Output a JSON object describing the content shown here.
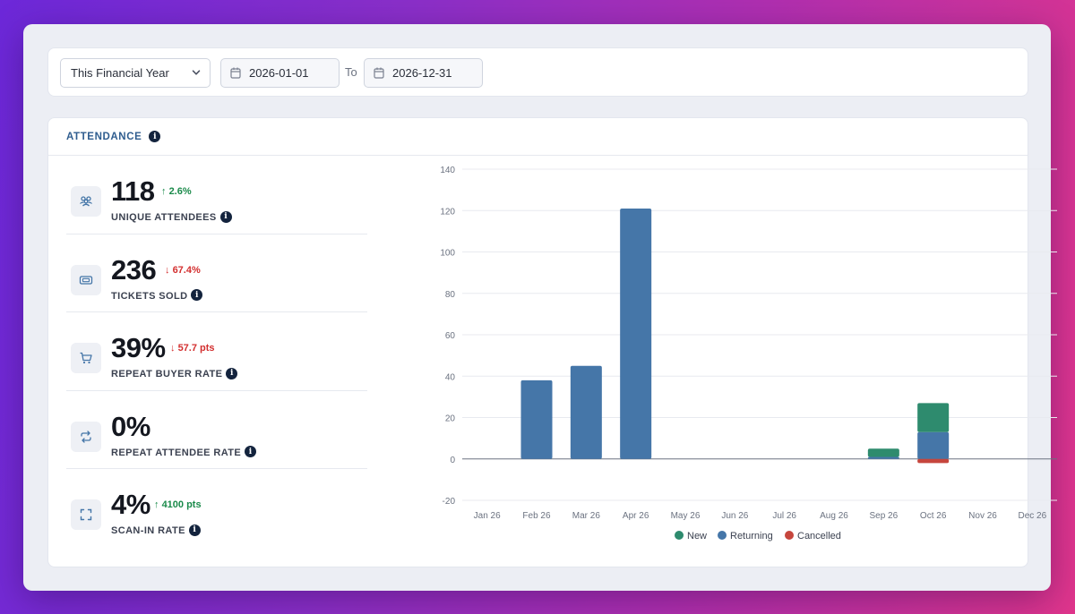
{
  "filter": {
    "range_label": "This Financial Year",
    "start_date": "2026-01-01",
    "to_label": "To",
    "end_date": "2026-12-31"
  },
  "attendance": {
    "title": "ATTENDANCE",
    "metrics": [
      {
        "value": "118",
        "change": "2.6%",
        "direction": "up",
        "label": "UNIQUE ATTENDEES",
        "icon": "users-icon"
      },
      {
        "value": "236",
        "change": "67.4%",
        "direction": "down",
        "label": "TICKETS SOLD",
        "icon": "ticket-icon"
      },
      {
        "value": "39%",
        "change": "57.7 pts",
        "direction": "down",
        "label": "REPEAT BUYER RATE",
        "icon": "cart-icon"
      },
      {
        "value": "0%",
        "change": "",
        "direction": "none",
        "label": "REPEAT ATTENDEE RATE",
        "icon": "repeat-icon"
      },
      {
        "value": "4%",
        "change": "4100 pts",
        "direction": "up",
        "label": "SCAN-IN RATE",
        "icon": "scan-icon"
      }
    ]
  },
  "chart_data": {
    "type": "bar",
    "stacked": true,
    "categories": [
      "Jan 26",
      "Feb 26",
      "Mar 26",
      "Apr 26",
      "May 26",
      "Jun 26",
      "Jul 26",
      "Aug 26",
      "Sep 26",
      "Oct 26",
      "Nov 26",
      "Dec 26"
    ],
    "series": [
      {
        "name": "New",
        "color": "#2e8b6e",
        "values": [
          0,
          0,
          0,
          0,
          0,
          0,
          0,
          0,
          4,
          14,
          0,
          0
        ]
      },
      {
        "name": "Returning",
        "color": "#4576a8",
        "values": [
          0,
          38,
          45,
          121,
          0,
          0,
          0,
          0,
          1,
          13,
          0,
          0
        ]
      },
      {
        "name": "Cancelled",
        "color": "#c6463d",
        "values": [
          0,
          0,
          0,
          0,
          0,
          0,
          0,
          0,
          0,
          -2,
          0,
          0
        ]
      }
    ],
    "yticks": [
      140,
      120,
      100,
      80,
      60,
      40,
      20,
      0,
      -20
    ],
    "ylim": [
      -20,
      140
    ],
    "grid": true,
    "legend": "bottom"
  }
}
